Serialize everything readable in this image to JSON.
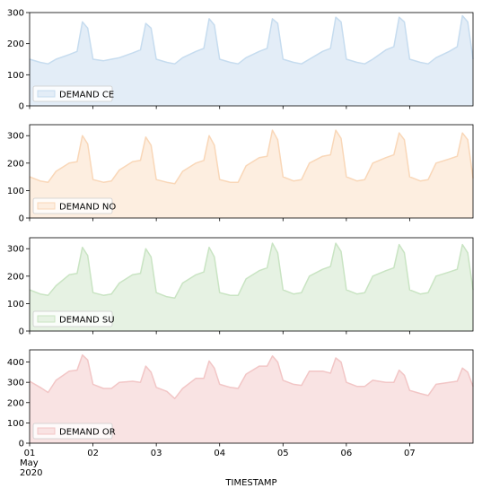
{
  "chart_data": {
    "type": "area",
    "xlabel": "TIMESTAMP",
    "x_range": [
      "2020-05-01",
      "2020-05-08"
    ],
    "x_ticks": [
      {
        "date": "2020-05-01",
        "lines": [
          "01",
          "May",
          "2020"
        ]
      },
      {
        "date": "2020-05-02",
        "lines": [
          "02"
        ]
      },
      {
        "date": "2020-05-03",
        "lines": [
          "03"
        ]
      },
      {
        "date": "2020-05-04",
        "lines": [
          "04"
        ]
      },
      {
        "date": "2020-05-05",
        "lines": [
          "05"
        ]
      },
      {
        "date": "2020-05-06",
        "lines": [
          "06"
        ]
      },
      {
        "date": "2020-05-07",
        "lines": [
          "07"
        ]
      }
    ],
    "legend_position": "lower left",
    "grid": false,
    "panels": [
      {
        "legend": "DEMAND CE",
        "fill": "#e3edf7",
        "line": "#c6dcef",
        "ylim": [
          0,
          300
        ],
        "yticks": [
          0,
          100,
          200,
          300
        ],
        "series": {
          "x": [
            "2020-05-01T00:00",
            "2020-05-01T04:00",
            "2020-05-01T07:00",
            "2020-05-01T10:00",
            "2020-05-01T15:00",
            "2020-05-01T18:00",
            "2020-05-01T20:00",
            "2020-05-01T22:00",
            "2020-05-02T00:00",
            "2020-05-02T04:00",
            "2020-05-02T07:00",
            "2020-05-02T10:00",
            "2020-05-02T15:00",
            "2020-05-02T18:00",
            "2020-05-02T20:00",
            "2020-05-02T22:00",
            "2020-05-03T00:00",
            "2020-05-03T04:00",
            "2020-05-03T07:00",
            "2020-05-03T10:00",
            "2020-05-03T15:00",
            "2020-05-03T18:00",
            "2020-05-03T20:00",
            "2020-05-03T22:00",
            "2020-05-04T00:00",
            "2020-05-04T04:00",
            "2020-05-04T07:00",
            "2020-05-04T10:00",
            "2020-05-04T15:00",
            "2020-05-04T18:00",
            "2020-05-04T20:00",
            "2020-05-04T22:00",
            "2020-05-05T00:00",
            "2020-05-05T04:00",
            "2020-05-05T07:00",
            "2020-05-05T10:00",
            "2020-05-05T15:00",
            "2020-05-05T18:00",
            "2020-05-05T20:00",
            "2020-05-05T22:00",
            "2020-05-06T00:00",
            "2020-05-06T04:00",
            "2020-05-06T07:00",
            "2020-05-06T10:00",
            "2020-05-06T15:00",
            "2020-05-06T18:00",
            "2020-05-06T20:00",
            "2020-05-06T22:00",
            "2020-05-07T00:00",
            "2020-05-07T04:00",
            "2020-05-07T07:00",
            "2020-05-07T10:00",
            "2020-05-07T15:00",
            "2020-05-07T18:00",
            "2020-05-07T20:00",
            "2020-05-07T22:00",
            "2020-05-08T00:00"
          ],
          "y": [
            150,
            140,
            135,
            150,
            165,
            175,
            270,
            250,
            150,
            145,
            150,
            155,
            170,
            180,
            265,
            250,
            150,
            140,
            135,
            155,
            175,
            185,
            280,
            260,
            150,
            140,
            135,
            155,
            175,
            185,
            280,
            265,
            150,
            140,
            135,
            150,
            175,
            185,
            285,
            270,
            150,
            140,
            135,
            150,
            180,
            190,
            285,
            270,
            150,
            140,
            135,
            155,
            175,
            190,
            290,
            270,
            150
          ]
        }
      },
      {
        "legend": "DEMAND NO",
        "fill": "#fdeee0",
        "line": "#f9d7b8",
        "ylim": [
          0,
          340
        ],
        "yticks": [
          0,
          100,
          200,
          300
        ],
        "series": {
          "x": [
            "2020-05-01T00:00",
            "2020-05-01T04:00",
            "2020-05-01T07:00",
            "2020-05-01T10:00",
            "2020-05-01T15:00",
            "2020-05-01T18:00",
            "2020-05-01T20:00",
            "2020-05-01T22:00",
            "2020-05-02T00:00",
            "2020-05-02T04:00",
            "2020-05-02T07:00",
            "2020-05-02T10:00",
            "2020-05-02T15:00",
            "2020-05-02T18:00",
            "2020-05-02T20:00",
            "2020-05-02T22:00",
            "2020-05-03T00:00",
            "2020-05-03T04:00",
            "2020-05-03T07:00",
            "2020-05-03T10:00",
            "2020-05-03T15:00",
            "2020-05-03T18:00",
            "2020-05-03T20:00",
            "2020-05-03T22:00",
            "2020-05-04T00:00",
            "2020-05-04T04:00",
            "2020-05-04T07:00",
            "2020-05-04T10:00",
            "2020-05-04T15:00",
            "2020-05-04T18:00",
            "2020-05-04T20:00",
            "2020-05-04T22:00",
            "2020-05-05T00:00",
            "2020-05-05T04:00",
            "2020-05-05T07:00",
            "2020-05-05T10:00",
            "2020-05-05T15:00",
            "2020-05-05T18:00",
            "2020-05-05T20:00",
            "2020-05-05T22:00",
            "2020-05-06T00:00",
            "2020-05-06T04:00",
            "2020-05-06T07:00",
            "2020-05-06T10:00",
            "2020-05-06T15:00",
            "2020-05-06T18:00",
            "2020-05-06T20:00",
            "2020-05-06T22:00",
            "2020-05-07T00:00",
            "2020-05-07T04:00",
            "2020-05-07T07:00",
            "2020-05-07T10:00",
            "2020-05-07T15:00",
            "2020-05-07T18:00",
            "2020-05-07T20:00",
            "2020-05-07T22:00",
            "2020-05-08T00:00"
          ],
          "y": [
            150,
            135,
            130,
            170,
            200,
            205,
            300,
            270,
            140,
            130,
            135,
            175,
            205,
            210,
            295,
            265,
            140,
            130,
            125,
            170,
            200,
            210,
            300,
            265,
            140,
            130,
            130,
            190,
            220,
            225,
            320,
            285,
            150,
            135,
            140,
            200,
            225,
            230,
            320,
            290,
            150,
            135,
            140,
            200,
            220,
            230,
            310,
            285,
            150,
            135,
            140,
            200,
            215,
            225,
            310,
            285,
            145
          ]
        }
      },
      {
        "legend": "DEMAND SU",
        "fill": "#e6f2e3",
        "line": "#c9e4c3",
        "ylim": [
          0,
          340
        ],
        "yticks": [
          0,
          100,
          200,
          300
        ],
        "series": {
          "x": [
            "2020-05-01T00:00",
            "2020-05-01T04:00",
            "2020-05-01T07:00",
            "2020-05-01T10:00",
            "2020-05-01T15:00",
            "2020-05-01T18:00",
            "2020-05-01T20:00",
            "2020-05-01T22:00",
            "2020-05-02T00:00",
            "2020-05-02T04:00",
            "2020-05-02T07:00",
            "2020-05-02T10:00",
            "2020-05-02T15:00",
            "2020-05-02T18:00",
            "2020-05-02T20:00",
            "2020-05-02T22:00",
            "2020-05-03T00:00",
            "2020-05-03T04:00",
            "2020-05-03T07:00",
            "2020-05-03T10:00",
            "2020-05-03T15:00",
            "2020-05-03T18:00",
            "2020-05-03T20:00",
            "2020-05-03T22:00",
            "2020-05-04T00:00",
            "2020-05-04T04:00",
            "2020-05-04T07:00",
            "2020-05-04T10:00",
            "2020-05-04T15:00",
            "2020-05-04T18:00",
            "2020-05-04T20:00",
            "2020-05-04T22:00",
            "2020-05-05T00:00",
            "2020-05-05T04:00",
            "2020-05-05T07:00",
            "2020-05-05T10:00",
            "2020-05-05T15:00",
            "2020-05-05T18:00",
            "2020-05-05T20:00",
            "2020-05-05T22:00",
            "2020-05-06T00:00",
            "2020-05-06T04:00",
            "2020-05-06T07:00",
            "2020-05-06T10:00",
            "2020-05-06T15:00",
            "2020-05-06T18:00",
            "2020-05-06T20:00",
            "2020-05-06T22:00",
            "2020-05-07T00:00",
            "2020-05-07T04:00",
            "2020-05-07T07:00",
            "2020-05-07T10:00",
            "2020-05-07T15:00",
            "2020-05-07T18:00",
            "2020-05-07T20:00",
            "2020-05-07T22:00",
            "2020-05-08T00:00"
          ],
          "y": [
            150,
            135,
            130,
            165,
            205,
            210,
            305,
            275,
            140,
            130,
            135,
            175,
            205,
            210,
            300,
            270,
            140,
            125,
            120,
            175,
            205,
            215,
            305,
            270,
            140,
            130,
            130,
            190,
            220,
            230,
            320,
            285,
            150,
            135,
            140,
            200,
            225,
            235,
            320,
            290,
            150,
            135,
            140,
            200,
            220,
            230,
            315,
            285,
            150,
            135,
            140,
            200,
            215,
            225,
            315,
            285,
            150
          ]
        }
      },
      {
        "legend": "DEMAND OR",
        "fill": "#f9e3e3",
        "line": "#f2c6c6",
        "ylim": [
          0,
          460
        ],
        "yticks": [
          0,
          100,
          200,
          300,
          400
        ],
        "series": {
          "x": [
            "2020-05-01T00:00",
            "2020-05-01T04:00",
            "2020-05-01T07:00",
            "2020-05-01T10:00",
            "2020-05-01T15:00",
            "2020-05-01T18:00",
            "2020-05-01T20:00",
            "2020-05-01T22:00",
            "2020-05-02T00:00",
            "2020-05-02T04:00",
            "2020-05-02T07:00",
            "2020-05-02T10:00",
            "2020-05-02T15:00",
            "2020-05-02T18:00",
            "2020-05-02T20:00",
            "2020-05-02T22:00",
            "2020-05-03T00:00",
            "2020-05-03T04:00",
            "2020-05-03T07:00",
            "2020-05-03T10:00",
            "2020-05-03T15:00",
            "2020-05-03T18:00",
            "2020-05-03T20:00",
            "2020-05-03T22:00",
            "2020-05-04T00:00",
            "2020-05-04T04:00",
            "2020-05-04T07:00",
            "2020-05-04T10:00",
            "2020-05-04T15:00",
            "2020-05-04T18:00",
            "2020-05-04T20:00",
            "2020-05-04T22:00",
            "2020-05-05T00:00",
            "2020-05-05T04:00",
            "2020-05-05T07:00",
            "2020-05-05T10:00",
            "2020-05-05T15:00",
            "2020-05-05T18:00",
            "2020-05-05T20:00",
            "2020-05-05T22:00",
            "2020-05-06T00:00",
            "2020-05-06T04:00",
            "2020-05-06T07:00",
            "2020-05-06T10:00",
            "2020-05-06T15:00",
            "2020-05-06T18:00",
            "2020-05-06T20:00",
            "2020-05-06T22:00",
            "2020-05-07T00:00",
            "2020-05-07T04:00",
            "2020-05-07T07:00",
            "2020-05-07T10:00",
            "2020-05-07T15:00",
            "2020-05-07T18:00",
            "2020-05-07T20:00",
            "2020-05-07T22:00",
            "2020-05-08T00:00"
          ],
          "y": [
            305,
            275,
            250,
            310,
            355,
            360,
            435,
            410,
            290,
            270,
            270,
            300,
            305,
            300,
            380,
            350,
            275,
            255,
            220,
            270,
            320,
            320,
            405,
            370,
            290,
            275,
            270,
            340,
            380,
            380,
            430,
            400,
            310,
            290,
            285,
            355,
            355,
            345,
            420,
            400,
            300,
            280,
            280,
            310,
            300,
            300,
            360,
            335,
            260,
            245,
            235,
            290,
            300,
            305,
            370,
            350,
            280
          ]
        }
      }
    ]
  }
}
